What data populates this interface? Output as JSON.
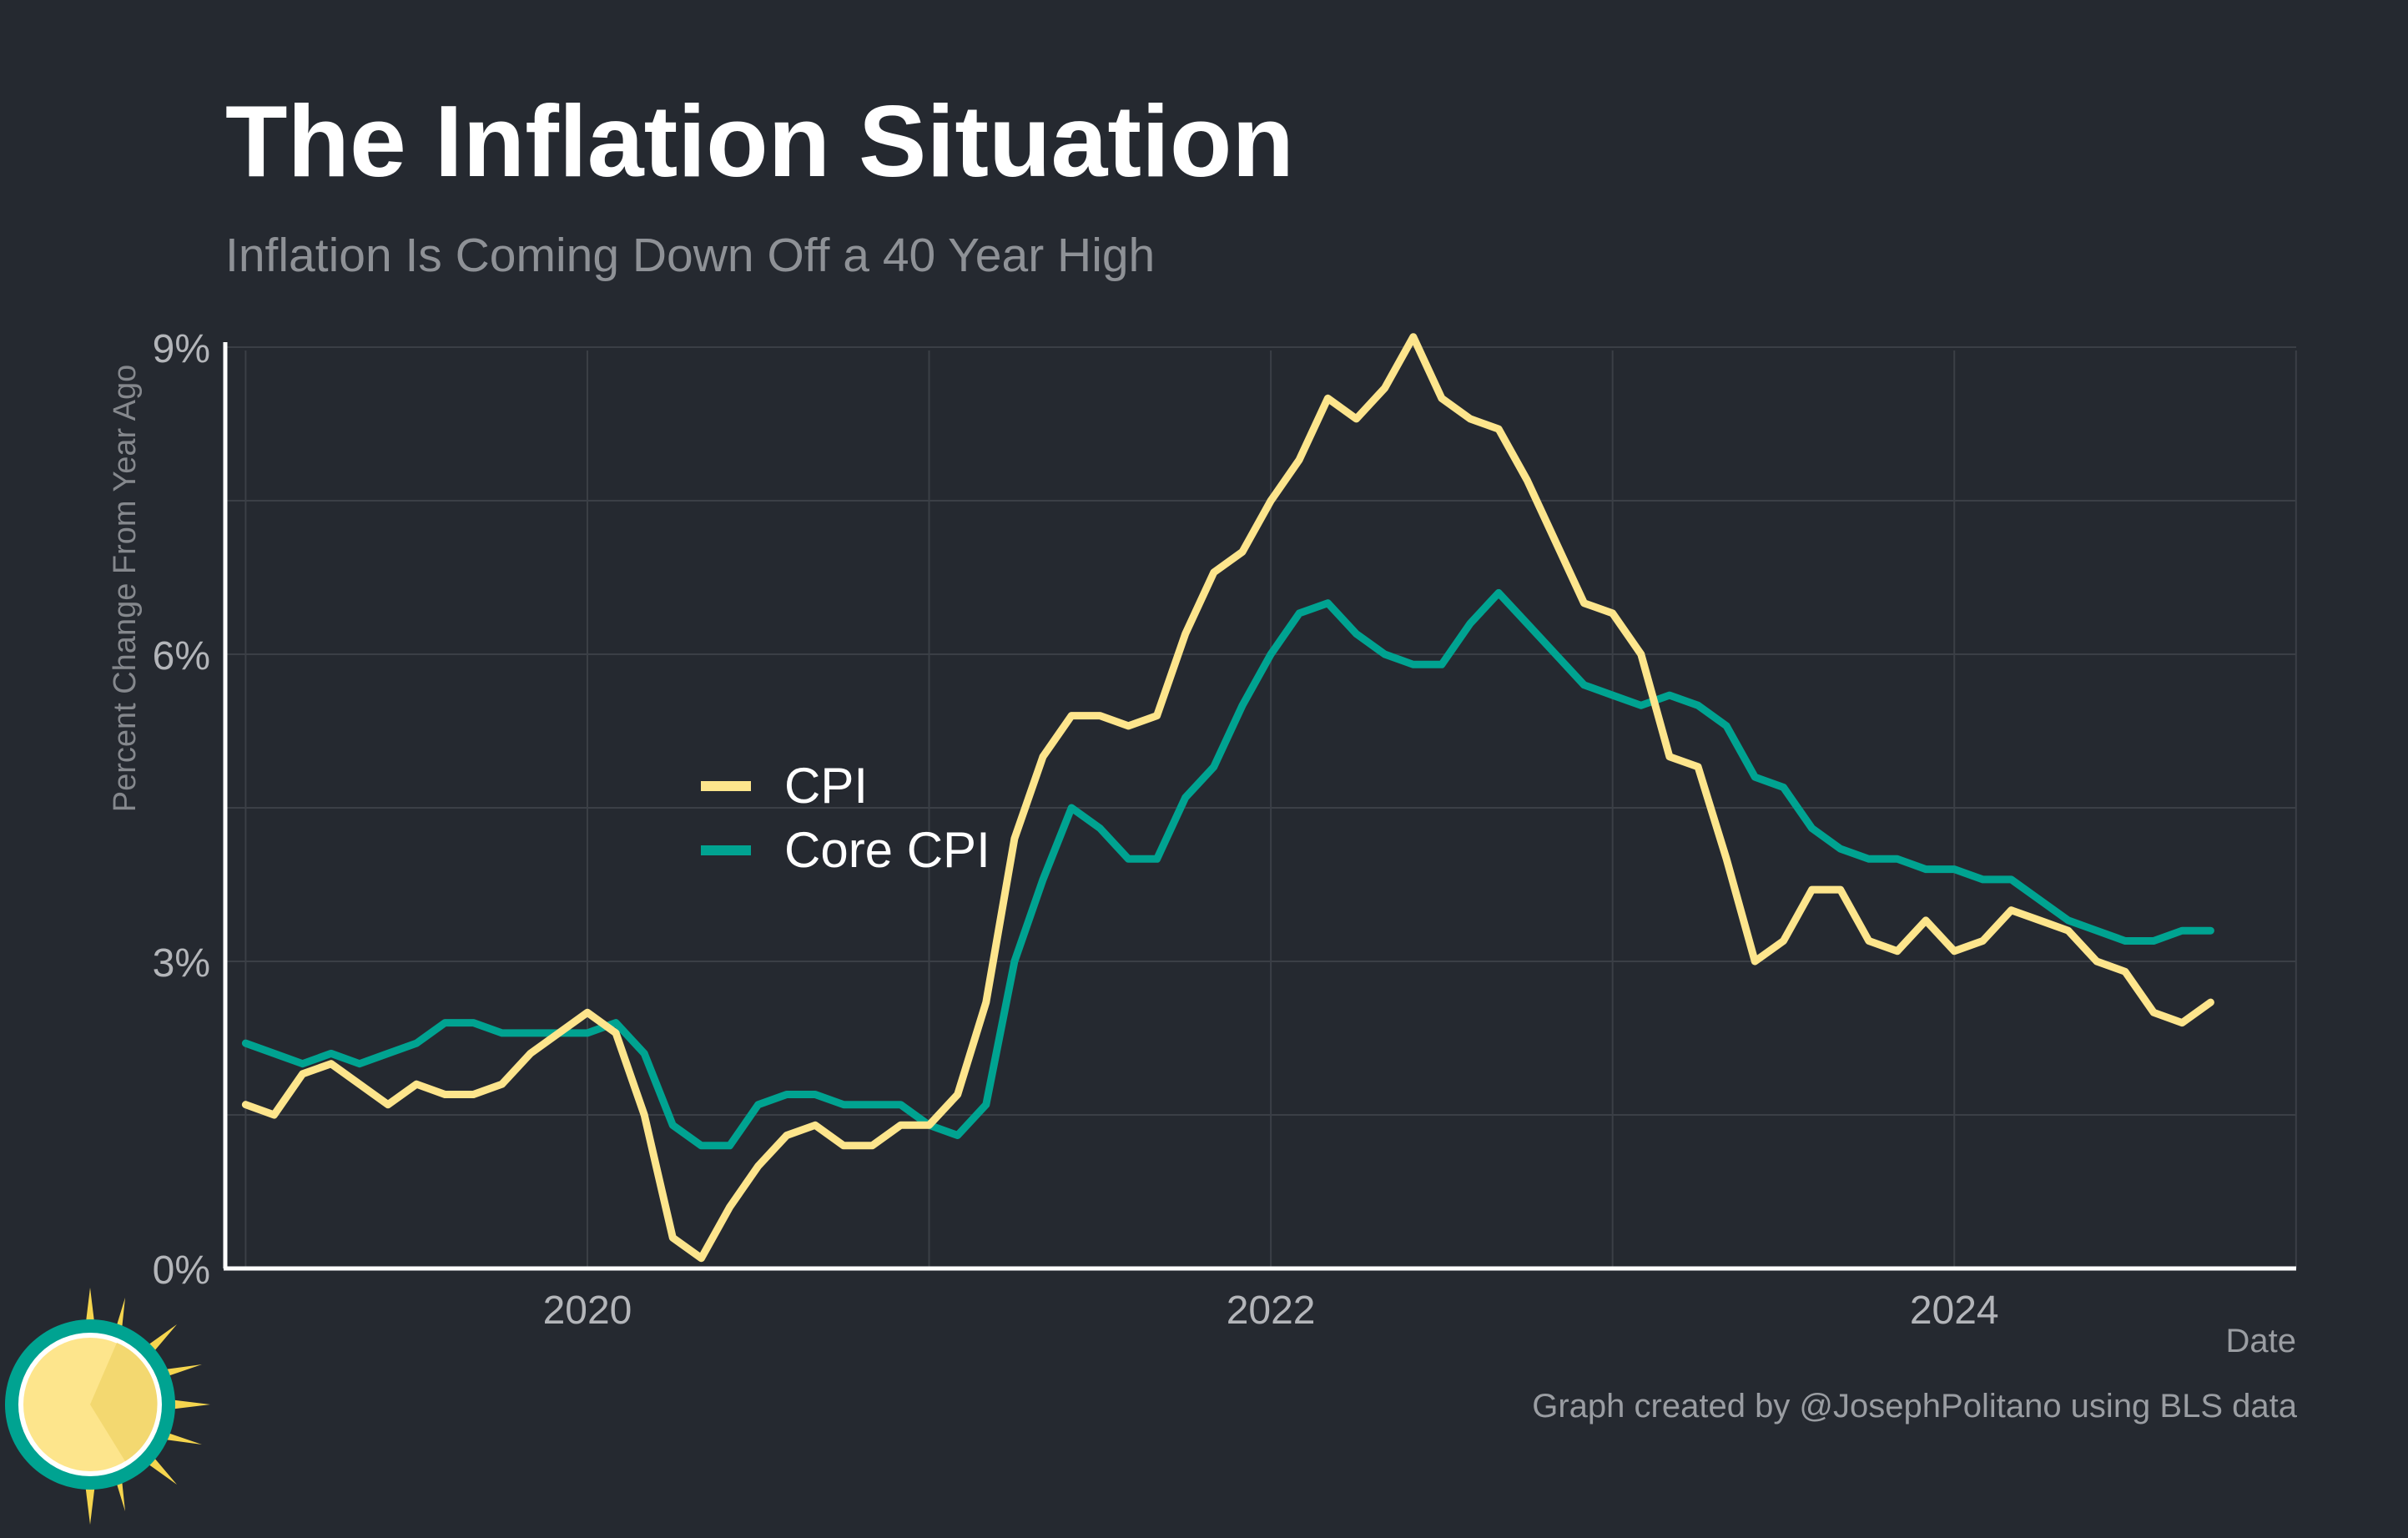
{
  "title": "The Inflation Situation",
  "subtitle": "Inflation Is Coming Down Off a 40 Year High",
  "credit": "Graph created by @JosephPolitano using BLS data",
  "logo_icon": "sun-icon",
  "colors": {
    "background": "#252930",
    "cpi": "#fde58c",
    "core_cpi": "#00a391",
    "grid": "#3b3f46",
    "axis": "#ffffff",
    "tick_text": "#b3b5b9"
  },
  "chart_data": {
    "type": "line",
    "xlabel": "Date",
    "ylabel": "Percent Change From Year Ago",
    "x_ticks": [
      "2020",
      "2022",
      "2024"
    ],
    "y_ticks": [
      "0%",
      "3%",
      "6%",
      "9%"
    ],
    "y_tick_values": [
      0,
      3,
      6,
      9
    ],
    "ylim": [
      0,
      9
    ],
    "xlim": [
      "2019-01",
      "2025-01"
    ],
    "grid": true,
    "legend_position": "center-left",
    "x": [
      "2019-01",
      "2019-02",
      "2019-03",
      "2019-04",
      "2019-05",
      "2019-06",
      "2019-07",
      "2019-08",
      "2019-09",
      "2019-10",
      "2019-11",
      "2019-12",
      "2020-01",
      "2020-02",
      "2020-03",
      "2020-04",
      "2020-05",
      "2020-06",
      "2020-07",
      "2020-08",
      "2020-09",
      "2020-10",
      "2020-11",
      "2020-12",
      "2021-01",
      "2021-02",
      "2021-03",
      "2021-04",
      "2021-05",
      "2021-06",
      "2021-07",
      "2021-08",
      "2021-09",
      "2021-10",
      "2021-11",
      "2021-12",
      "2022-01",
      "2022-02",
      "2022-03",
      "2022-04",
      "2022-05",
      "2022-06",
      "2022-07",
      "2022-08",
      "2022-09",
      "2022-10",
      "2022-11",
      "2022-12",
      "2023-01",
      "2023-02",
      "2023-03",
      "2023-04",
      "2023-05",
      "2023-06",
      "2023-07",
      "2023-08",
      "2023-09",
      "2023-10",
      "2023-11",
      "2023-12",
      "2024-01",
      "2024-02",
      "2024-03",
      "2024-04",
      "2024-05",
      "2024-06",
      "2024-07",
      "2024-08",
      "2024-09",
      "2024-10"
    ],
    "series": [
      {
        "name": "CPI",
        "color": "#fde58c",
        "values": [
          1.6,
          1.5,
          1.9,
          2.0,
          1.8,
          1.6,
          1.8,
          1.7,
          1.7,
          1.8,
          2.1,
          2.3,
          2.5,
          2.3,
          1.5,
          0.3,
          0.1,
          0.6,
          1.0,
          1.3,
          1.4,
          1.2,
          1.2,
          1.4,
          1.4,
          1.7,
          2.6,
          4.2,
          5.0,
          5.4,
          5.4,
          5.3,
          5.4,
          6.2,
          6.8,
          7.0,
          7.5,
          7.9,
          8.5,
          8.3,
          8.6,
          9.1,
          8.5,
          8.3,
          8.2,
          7.7,
          7.1,
          6.5,
          6.4,
          6.0,
          5.0,
          4.9,
          4.0,
          3.0,
          3.2,
          3.7,
          3.7,
          3.2,
          3.1,
          3.4,
          3.1,
          3.2,
          3.5,
          3.4,
          3.3,
          3.0,
          2.9,
          2.5,
          2.4,
          2.6
        ]
      },
      {
        "name": "Core CPI",
        "color": "#00a391",
        "values": [
          2.2,
          2.1,
          2.0,
          2.1,
          2.0,
          2.1,
          2.2,
          2.4,
          2.4,
          2.3,
          2.3,
          2.3,
          2.3,
          2.4,
          2.1,
          1.4,
          1.2,
          1.2,
          1.6,
          1.7,
          1.7,
          1.6,
          1.6,
          1.6,
          1.4,
          1.3,
          1.6,
          3.0,
          3.8,
          4.5,
          4.3,
          4.0,
          4.0,
          4.6,
          4.9,
          5.5,
          6.0,
          6.4,
          6.5,
          6.2,
          6.0,
          5.9,
          5.9,
          6.3,
          6.6,
          6.3,
          6.0,
          5.7,
          5.6,
          5.5,
          5.6,
          5.5,
          5.3,
          4.8,
          4.7,
          4.3,
          4.1,
          4.0,
          4.0,
          3.9,
          3.9,
          3.8,
          3.8,
          3.6,
          3.4,
          3.3,
          3.2,
          3.2,
          3.3,
          3.3
        ]
      }
    ]
  }
}
